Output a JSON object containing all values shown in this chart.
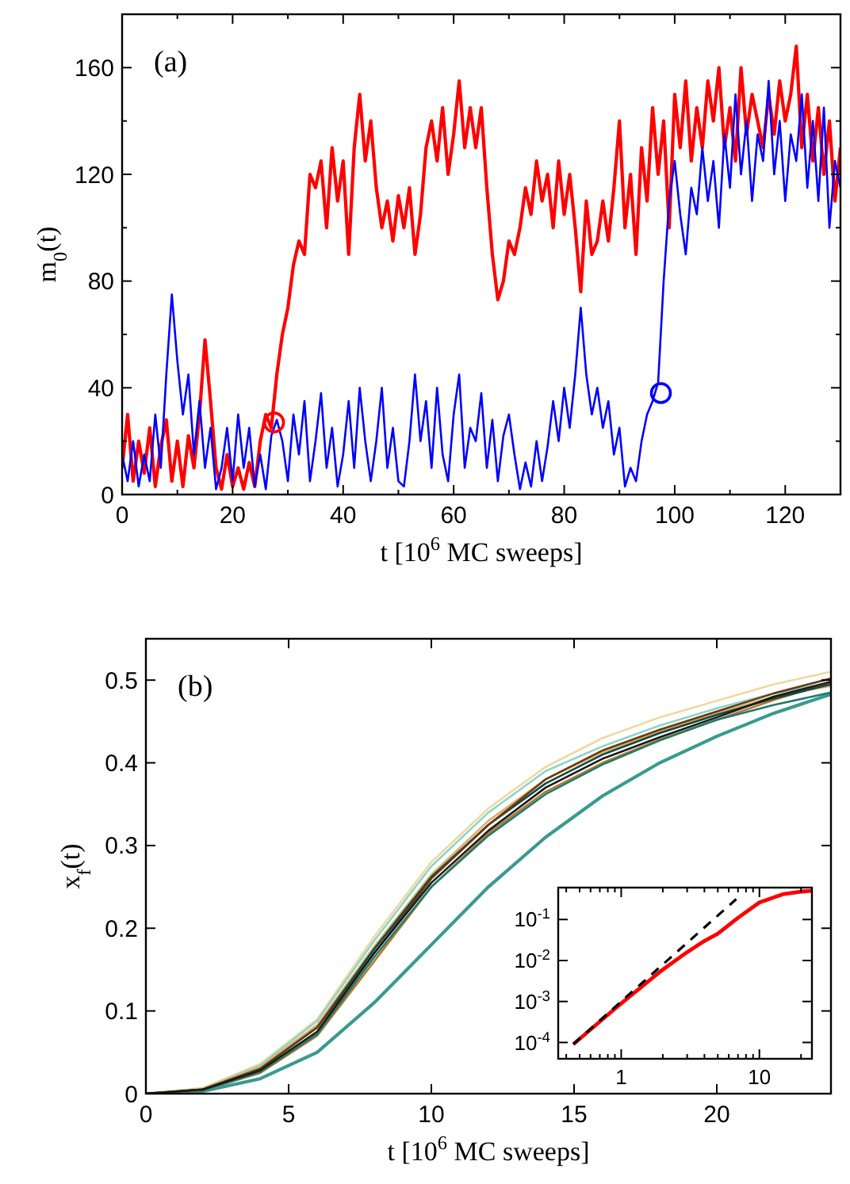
{
  "chart_data": [
    {
      "type": "line",
      "annotations": [
        "(a)"
      ],
      "xlabel": "t [10$^{6}$ MC sweeps]",
      "ylabel": "m$_{0}$(t)",
      "xlim": [
        0,
        130
      ],
      "ylim": [
        0,
        180
      ],
      "xticks": [
        0,
        {
          "value": 10,
          "label": null
        },
        20,
        {
          "value": 30,
          "label": null
        },
        40,
        {
          "value": 50,
          "label": null
        },
        60,
        {
          "value": 70,
          "label": null
        },
        80,
        {
          "value": 90,
          "label": null
        },
        100,
        {
          "value": 110,
          "label": null
        },
        120
      ],
      "yticks": [
        0,
        {
          "value": 20,
          "label": null
        },
        40,
        {
          "value": 60,
          "label": null
        },
        80,
        {
          "value": 100,
          "label": null
        },
        120,
        {
          "value": 140,
          "label": null
        },
        160
      ],
      "x": [
        0,
        1,
        2,
        3,
        4,
        5,
        6,
        7,
        8,
        9,
        10,
        11,
        12,
        13,
        14,
        15,
        16,
        17,
        18,
        19,
        20,
        21,
        22,
        23,
        24,
        25,
        26,
        27,
        28,
        29,
        30,
        31,
        32,
        33,
        34,
        35,
        36,
        37,
        38,
        39,
        40,
        41,
        42,
        43,
        44,
        45,
        46,
        47,
        48,
        49,
        50,
        51,
        52,
        53,
        54,
        55,
        56,
        57,
        58,
        59,
        60,
        61,
        62,
        63,
        64,
        65,
        66,
        67,
        68,
        69,
        70,
        71,
        72,
        73,
        74,
        75,
        76,
        77,
        78,
        79,
        80,
        81,
        82,
        83,
        84,
        85,
        86,
        87,
        88,
        89,
        90,
        91,
        92,
        93,
        94,
        95,
        96,
        97,
        98,
        99,
        100,
        101,
        102,
        103,
        104,
        105,
        106,
        107,
        108,
        109,
        110,
        111,
        112,
        113,
        114,
        115,
        116,
        117,
        118,
        119,
        120,
        121,
        122,
        123,
        124,
        125,
        126,
        127,
        128,
        129,
        130
      ],
      "series": [
        {
          "color": "#ff0000",
          "values": [
            10,
            30,
            5,
            20,
            8,
            25,
            3,
            18,
            28,
            5,
            20,
            3,
            22,
            10,
            30,
            58,
            35,
            10,
            2,
            15,
            3,
            10,
            2,
            12,
            3,
            20,
            30,
            25,
            45,
            60,
            70,
            86,
            95,
            90,
            120,
            115,
            125,
            100,
            130,
            110,
            125,
            90,
            130,
            150,
            125,
            140,
            115,
            100,
            110,
            95,
            112,
            100,
            115,
            90,
            105,
            130,
            140,
            125,
            145,
            120,
            135,
            155,
            130,
            145,
            130,
            145,
            115,
            90,
            73,
            80,
            95,
            90,
            100,
            115,
            105,
            125,
            110,
            120,
            100,
            125,
            105,
            120,
            100,
            76,
            110,
            90,
            95,
            110,
            95,
            115,
            140,
            100,
            120,
            90,
            130,
            110,
            145,
            120,
            140,
            100,
            150,
            130,
            155,
            125,
            145,
            130,
            155,
            140,
            160,
            130,
            145,
            125,
            160,
            135,
            150,
            140,
            130,
            150,
            135,
            155,
            140,
            150,
            168,
            130,
            150,
            125,
            145,
            120,
            140,
            110,
            130
          ]
        },
        {
          "color": "#0000ff",
          "values": [
            15,
            5,
            20,
            3,
            15,
            5,
            30,
            10,
            45,
            75,
            50,
            30,
            45,
            15,
            35,
            10,
            25,
            2,
            10,
            25,
            5,
            30,
            10,
            25,
            3,
            15,
            2,
            22,
            28,
            20,
            5,
            30,
            15,
            35,
            5,
            20,
            38,
            10,
            25,
            3,
            15,
            35,
            10,
            40,
            20,
            5,
            20,
            40,
            10,
            25,
            5,
            3,
            20,
            45,
            20,
            35,
            10,
            40,
            15,
            5,
            30,
            45,
            10,
            25,
            20,
            38,
            10,
            28,
            5,
            22,
            30,
            15,
            2,
            12,
            3,
            20,
            5,
            18,
            35,
            20,
            40,
            25,
            45,
            70,
            45,
            30,
            40,
            25,
            35,
            15,
            25,
            3,
            10,
            5,
            20,
            30,
            35,
            42,
            80,
            110,
            125,
            105,
            90,
            115,
            105,
            130,
            110,
            125,
            100,
            135,
            115,
            150,
            120,
            140,
            110,
            135,
            125,
            155,
            120,
            140,
            110,
            135,
            125,
            150,
            115,
            140,
            110,
            145,
            100,
            125,
            115
          ]
        },
        {
          "type": "scatter",
          "marker": "circle",
          "color": "#ff0000",
          "x": [
            27.5
          ],
          "values": [
            27
          ]
        },
        {
          "type": "scatter",
          "marker": "circle",
          "color": "#0000ff",
          "x": [
            97.5
          ],
          "values": [
            38
          ]
        }
      ]
    },
    {
      "type": "line",
      "annotations": [
        "(b)"
      ],
      "xlabel": "t [10$^{6}$ MC sweeps]",
      "ylabel": "x$_{f}$(t)",
      "xlim": [
        0,
        24
      ],
      "ylim": [
        0,
        0.55
      ],
      "xticks": [
        0,
        5,
        10,
        15,
        20
      ],
      "yticks": [
        0,
        0.1,
        0.2,
        0.3,
        0.4,
        0.5
      ],
      "x": [
        0,
        2,
        4,
        6,
        8,
        10,
        12,
        14,
        16,
        18,
        20,
        22,
        24
      ],
      "series": [
        {
          "color": "#3a9a90",
          "values": [
            0,
            0.003,
            0.018,
            0.05,
            0.11,
            0.18,
            0.25,
            0.31,
            0.36,
            0.4,
            0.432,
            0.46,
            0.483
          ]
        },
        {
          "color": "#f0d8a0",
          "values": [
            0,
            0.007,
            0.036,
            0.09,
            0.19,
            0.28,
            0.345,
            0.395,
            0.43,
            0.455,
            0.475,
            0.495,
            0.51
          ]
        },
        {
          "color": "#8ed4c8",
          "values": [
            0,
            0.006,
            0.034,
            0.088,
            0.185,
            0.275,
            0.34,
            0.39,
            0.42,
            0.445,
            0.466,
            0.484,
            0.497
          ]
        },
        {
          "color": "#d9b070",
          "values": [
            0,
            0.006,
            0.032,
            0.083,
            0.178,
            0.265,
            0.33,
            0.38,
            0.413,
            0.438,
            0.46,
            0.48,
            0.493
          ]
        },
        {
          "color": "#b8782a",
          "values": [
            0,
            0.004,
            0.025,
            0.07,
            0.16,
            0.25,
            0.315,
            0.365,
            0.4,
            0.428,
            0.452,
            0.476,
            0.497
          ]
        },
        {
          "color": "#1f7a70",
          "values": [
            0,
            0.004,
            0.026,
            0.072,
            0.165,
            0.25,
            0.312,
            0.362,
            0.398,
            0.427,
            0.452,
            0.47,
            0.485
          ]
        },
        {
          "color": "#0d4a40",
          "values": [
            0,
            0.005,
            0.03,
            0.08,
            0.175,
            0.262,
            0.325,
            0.375,
            0.41,
            0.436,
            0.458,
            0.478,
            0.495
          ]
        },
        {
          "color": "#6b3a10",
          "values": [
            0,
            0.005,
            0.03,
            0.08,
            0.17,
            0.26,
            0.325,
            0.38,
            0.415,
            0.44,
            0.462,
            0.484,
            0.502
          ]
        },
        {
          "color": "#1a1a1a",
          "values": [
            0,
            0.005,
            0.028,
            0.075,
            0.17,
            0.255,
            0.318,
            0.37,
            0.405,
            0.431,
            0.455,
            0.48,
            0.498
          ]
        }
      ]
    },
    {
      "type": "line",
      "log": "xy",
      "xlim": [
        0.35,
        24
      ],
      "ylim": [
        4e-05,
        0.6
      ],
      "xticks": [
        {
          "value": 0.4,
          "label": null
        },
        {
          "value": 0.5,
          "label": null
        },
        {
          "value": 0.6,
          "label": null
        },
        {
          "value": 0.7,
          "label": null
        },
        {
          "value": 0.8,
          "label": null
        },
        {
          "value": 0.9,
          "label": null
        },
        1,
        {
          "value": 2,
          "label": null
        },
        {
          "value": 3,
          "label": null
        },
        {
          "value": 4,
          "label": null
        },
        {
          "value": 5,
          "label": null
        },
        {
          "value": 6,
          "label": null
        },
        {
          "value": 7,
          "label": null
        },
        {
          "value": 8,
          "label": null
        },
        {
          "value": 9,
          "label": null
        },
        10,
        {
          "value": 20,
          "label": null
        }
      ],
      "yticks": [
        {
          "value": 0.0001,
          "label": "10$^{-4}$"
        },
        {
          "value": 0.001,
          "label": "10$^{-3}$"
        },
        {
          "value": 0.01,
          "label": "10$^{-2}$"
        },
        {
          "value": 0.1,
          "label": "10$^{-1}$"
        }
      ],
      "series": [
        {
          "color": "#ff0000",
          "x": [
            0.45,
            1,
            2,
            3,
            4,
            5,
            7,
            10,
            15,
            20,
            24
          ],
          "values": [
            9e-05,
            0.0009,
            0.006,
            0.016,
            0.03,
            0.045,
            0.11,
            0.26,
            0.42,
            0.48,
            0.5
          ]
        },
        {
          "color": "#000000",
          "line_style": "dashed",
          "x": [
            0.45,
            6.8
          ],
          "values": [
            9.1e-05,
            0.314
          ]
        }
      ]
    }
  ]
}
